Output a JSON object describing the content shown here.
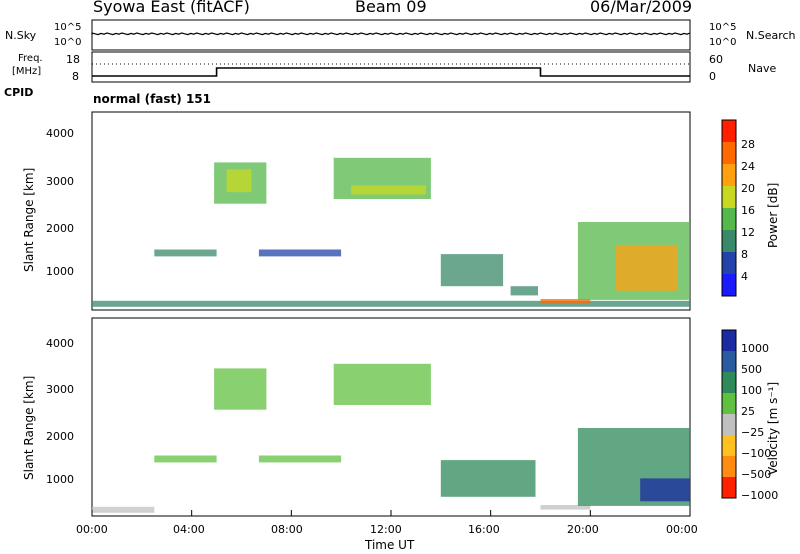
{
  "header": {
    "station": "Syowa East (fitACF)",
    "beam": "Beam 09",
    "date": "06/Mar/2009"
  },
  "panels": {
    "nsky": {
      "label": "N.Sky",
      "ticks": [
        "10^5",
        "10^0"
      ],
      "right_label": "N.Search",
      "right_ticks": [
        "10^5",
        "10^0"
      ]
    },
    "freq": {
      "label_line1": "Freq.",
      "label_line2": "[MHz]",
      "ticks": [
        "18",
        "8"
      ],
      "right_label": "Nave",
      "right_ticks": [
        "60",
        "0"
      ]
    },
    "cpid": {
      "label": "CPID",
      "program": "normal (fast) 151"
    },
    "power": {
      "ylabel": "Slant Range [km]",
      "yticks": [
        "4000",
        "3000",
        "2000",
        "1000"
      ],
      "colorbar_label": "Power [dB]",
      "colorbar_ticks": [
        "28",
        "24",
        "20",
        "16",
        "12",
        "8",
        "4"
      ]
    },
    "velocity": {
      "ylabel": "Slant Range [km]",
      "yticks": [
        "4000",
        "3000",
        "2000",
        "1000"
      ],
      "colorbar_label": "Velocity [m s⁻¹]",
      "colorbar_ticks": [
        "1000",
        "500",
        "100",
        "25",
        "−25",
        "−100",
        "−500",
        "−1000"
      ]
    },
    "xaxis": {
      "label": "Time UT",
      "ticks": [
        "00:00",
        "04:00",
        "08:00",
        "12:00",
        "16:00",
        "20:00",
        "00:00"
      ]
    }
  },
  "colors": {
    "power_scale": [
      "#1a1aff",
      "#2244aa",
      "#3a8a6a",
      "#55b84a",
      "#c8d820",
      "#ffa010",
      "#ff6a00",
      "#ff2000"
    ],
    "velocity_scale": [
      "#1a2aa0",
      "#2a5aa0",
      "#2e8a5a",
      "#60c040",
      "#c0c0c0",
      "#ffc020",
      "#ff8c10",
      "#ff2000"
    ]
  },
  "chart_data": [
    {
      "type": "heatmap",
      "title": "Power",
      "x_range_hours": [
        0,
        24
      ],
      "y_range_km": [
        180,
        4500
      ],
      "z_range": [
        0,
        30
      ],
      "colorbar_label": "Power [dB]",
      "regions": [
        {
          "t": [
            0.0,
            24.0
          ],
          "r": [
            250,
            380
          ],
          "v": 10
        },
        {
          "t": [
            2.5,
            5.0
          ],
          "r": [
            1350,
            1500
          ],
          "v": 8
        },
        {
          "t": [
            4.9,
            7.0
          ],
          "r": [
            2500,
            3400
          ],
          "v": 12
        },
        {
          "t": [
            5.4,
            6.4
          ],
          "r": [
            2750,
            3250
          ],
          "v": 18
        },
        {
          "t": [
            6.7,
            10.0
          ],
          "r": [
            1350,
            1500
          ],
          "v": 6
        },
        {
          "t": [
            9.7,
            13.6
          ],
          "r": [
            2600,
            3500
          ],
          "v": 12
        },
        {
          "t": [
            10.4,
            13.4
          ],
          "r": [
            2700,
            2900
          ],
          "v": 16
        },
        {
          "t": [
            14.0,
            16.5
          ],
          "r": [
            700,
            1400
          ],
          "v": 8
        },
        {
          "t": [
            16.8,
            17.9
          ],
          "r": [
            500,
            700
          ],
          "v": 10
        },
        {
          "t": [
            18.0,
            20.0
          ],
          "r": [
            320,
            420
          ],
          "v": 24
        },
        {
          "t": [
            19.5,
            24.0
          ],
          "r": [
            400,
            2100
          ],
          "v": 14
        },
        {
          "t": [
            21.0,
            23.5
          ],
          "r": [
            600,
            1600
          ],
          "v": 20
        }
      ]
    },
    {
      "type": "heatmap",
      "title": "Velocity",
      "x_range_hours": [
        0,
        24
      ],
      "y_range_km": [
        180,
        4500
      ],
      "z_range": [
        -1000,
        1000
      ],
      "colorbar_label": "Velocity [m s⁻¹]",
      "regions": [
        {
          "t": [
            0.0,
            2.5
          ],
          "r": [
            250,
            380
          ],
          "v": -80
        },
        {
          "t": [
            2.5,
            5.0
          ],
          "r": [
            1350,
            1500
          ],
          "v": 0
        },
        {
          "t": [
            4.9,
            7.0
          ],
          "r": [
            2500,
            3400
          ],
          "v": 0
        },
        {
          "t": [
            6.7,
            10.0
          ],
          "r": [
            1350,
            1500
          ],
          "v": 0
        },
        {
          "t": [
            9.7,
            13.6
          ],
          "r": [
            2600,
            3500
          ],
          "v": 0
        },
        {
          "t": [
            14.0,
            17.8
          ],
          "r": [
            600,
            1400
          ],
          "v": 80
        },
        {
          "t": [
            18.0,
            20.0
          ],
          "r": [
            320,
            420
          ],
          "v": -80
        },
        {
          "t": [
            19.5,
            24.0
          ],
          "r": [
            400,
            2100
          ],
          "v": 80
        },
        {
          "t": [
            22.0,
            24.0
          ],
          "r": [
            500,
            1000
          ],
          "v": 500
        }
      ]
    }
  ]
}
